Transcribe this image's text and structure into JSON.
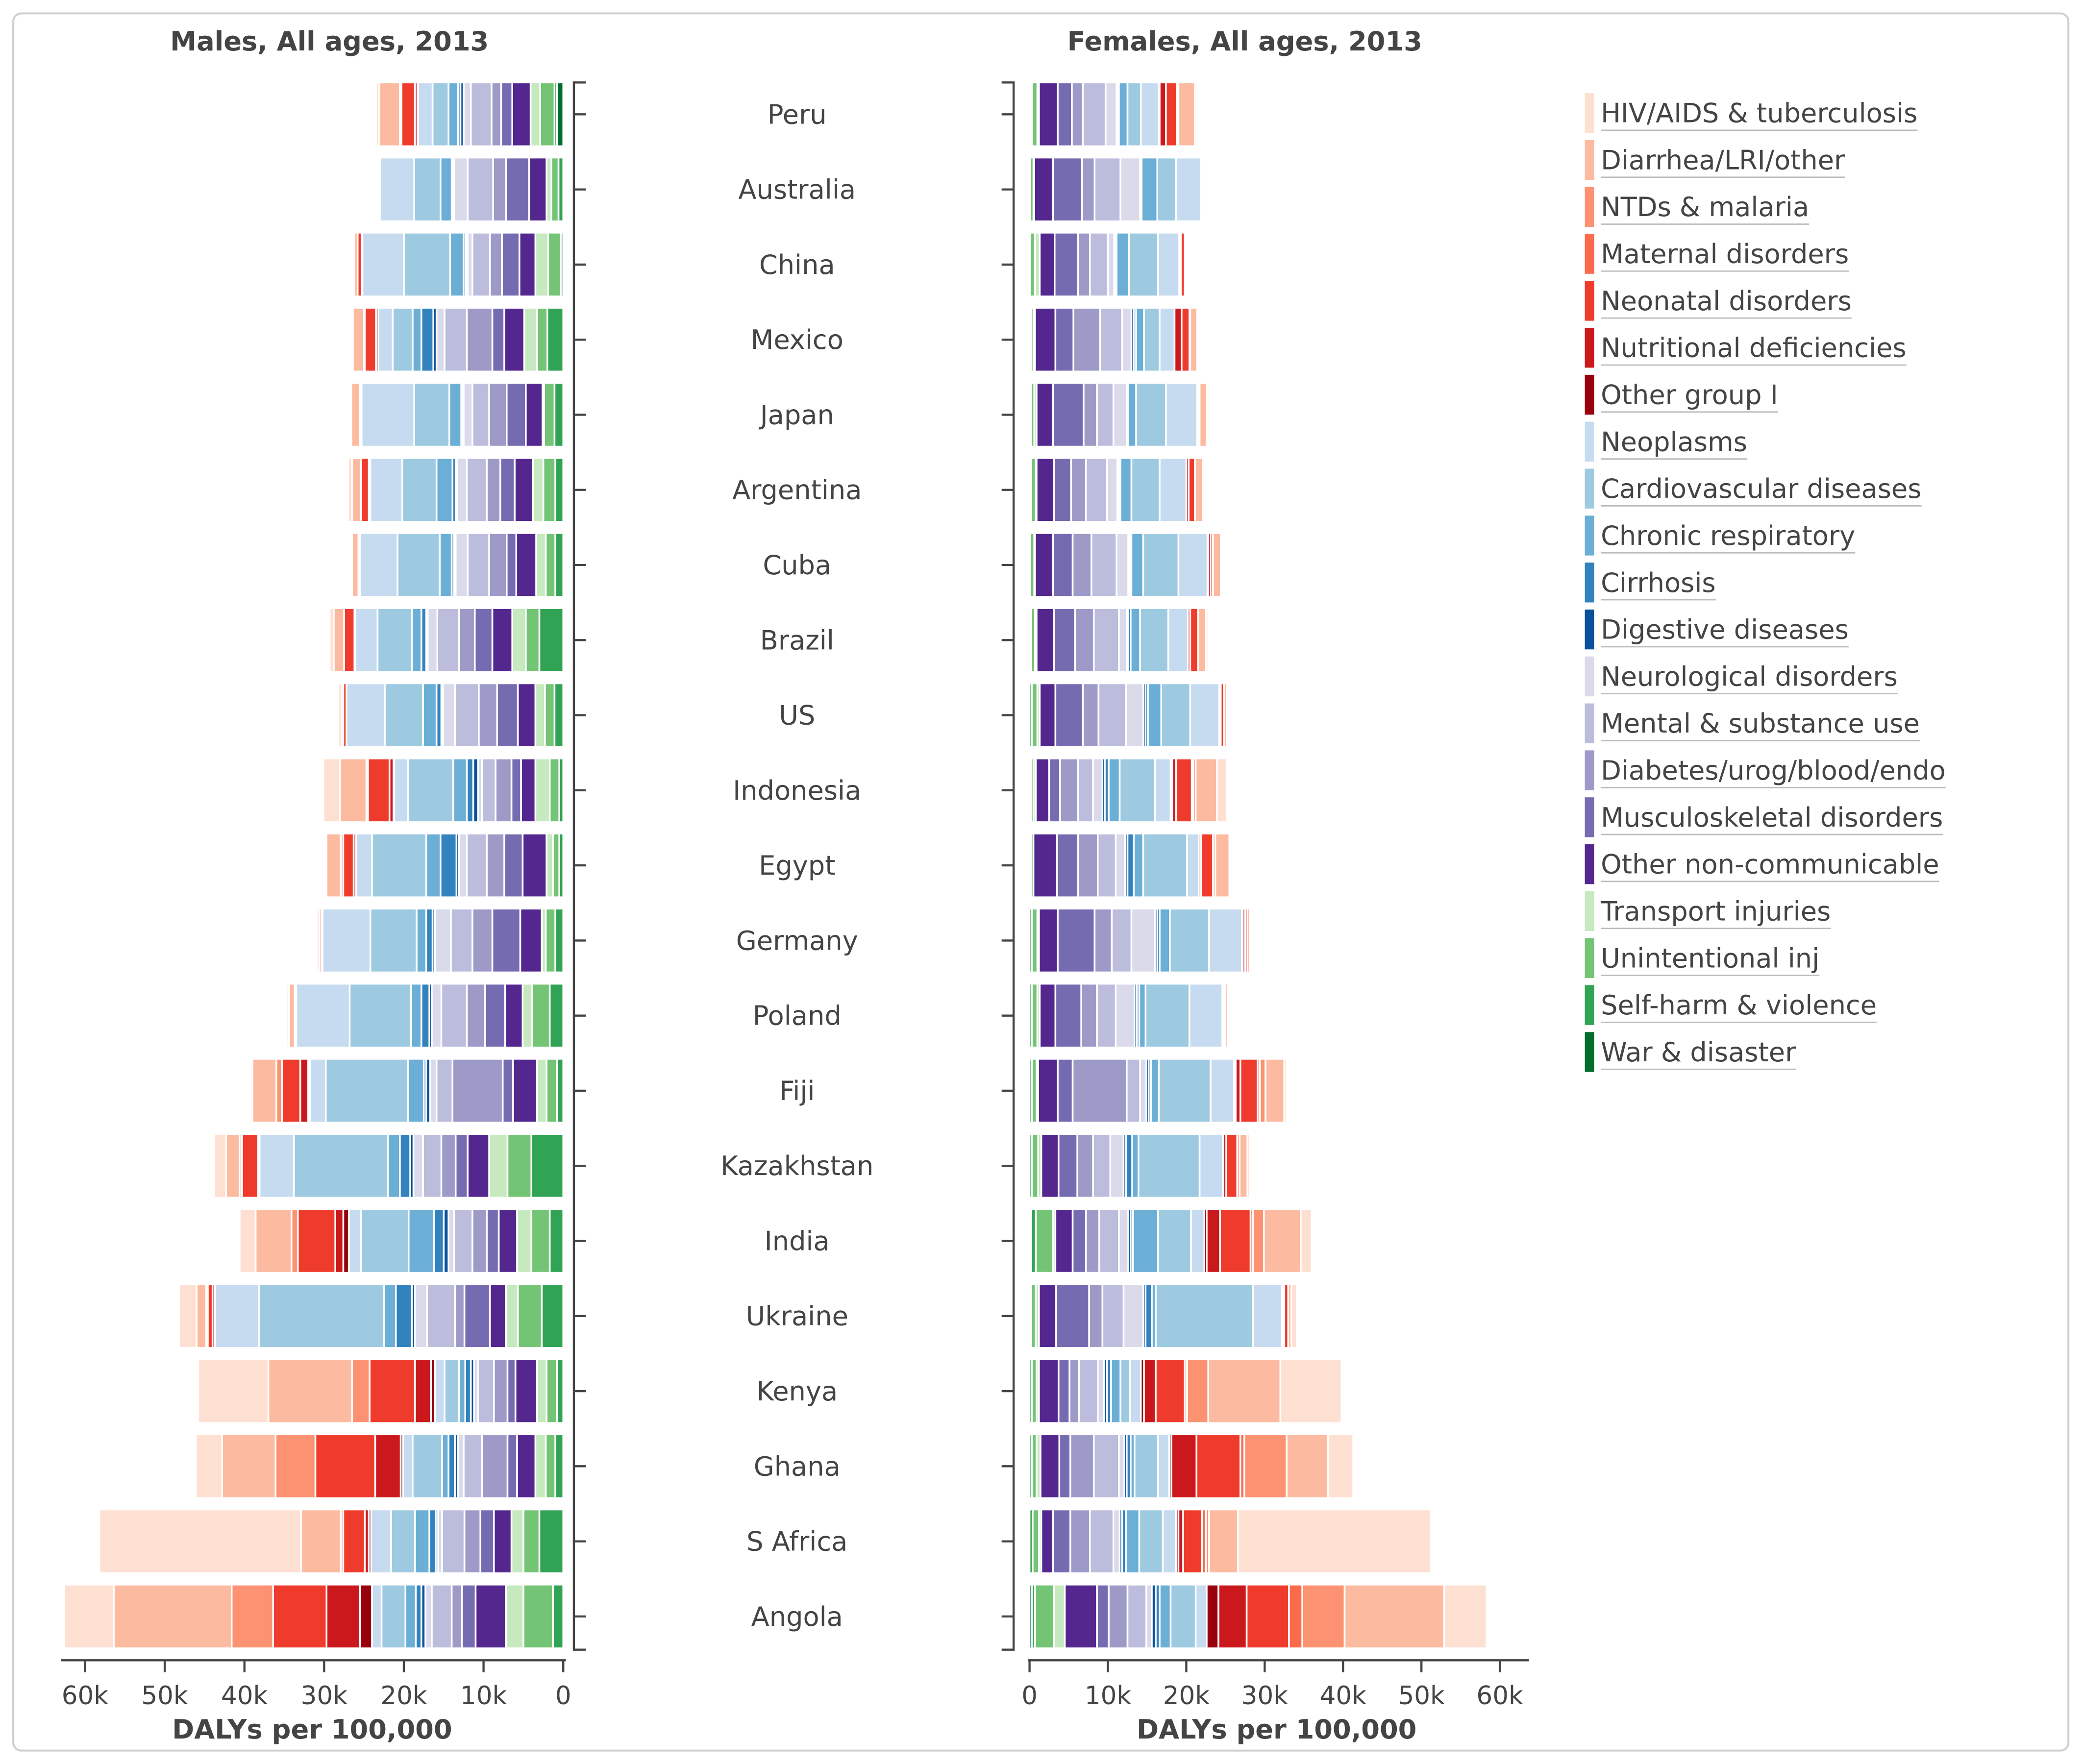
{
  "legend": [
    {
      "label": "HIV/AIDS & tuberculosis",
      "color": "#fee0d2"
    },
    {
      "label": "Diarrhea/LRI/other",
      "color": "#fcbba1"
    },
    {
      "label": "NTDs & malaria",
      "color": "#fc9272"
    },
    {
      "label": "Maternal disorders",
      "color": "#fb6a4a"
    },
    {
      "label": "Neonatal disorders",
      "color": "#ef3b2c"
    },
    {
      "label": "Nutritional deficiencies",
      "color": "#cb181d"
    },
    {
      "label": "Other group I",
      "color": "#99000d"
    },
    {
      "label": "Neoplasms",
      "color": "#c6dbef"
    },
    {
      "label": "Cardiovascular diseases",
      "color": "#9ecae1"
    },
    {
      "label": "Chronic respiratory",
      "color": "#6baed6"
    },
    {
      "label": "Cirrhosis",
      "color": "#3182bd"
    },
    {
      "label": "Digestive diseases",
      "color": "#08519c"
    },
    {
      "label": "Neurological disorders",
      "color": "#dadaeb"
    },
    {
      "label": "Mental & substance use",
      "color": "#bcbddc"
    },
    {
      "label": "Diabetes/urog/blood/endo",
      "color": "#9e9ac8"
    },
    {
      "label": "Musculoskeletal disorders",
      "color": "#756bb1"
    },
    {
      "label": "Other non-communicable",
      "color": "#54278f"
    },
    {
      "label": "Transport injuries",
      "color": "#c7e9c0"
    },
    {
      "label": "Unintentional inj",
      "color": "#74c476"
    },
    {
      "label": "Self-harm & violence",
      "color": "#31a354"
    },
    {
      "label": "War & disaster",
      "color": "#006d2c"
    }
  ],
  "categories": [
    "Peru",
    "Australia",
    "China",
    "Mexico",
    "Japan",
    "Argentina",
    "Cuba",
    "Brazil",
    "US",
    "Indonesia",
    "Egypt",
    "Germany",
    "Poland",
    "Fiji",
    "Kazakhstan",
    "India",
    "Ukraine",
    "Kenya",
    "Ghana",
    "S Africa",
    "Angola"
  ],
  "chart_data": [
    {
      "type": "bar",
      "orientation": "horizontal-stacked",
      "title": "Males, All ages, 2013",
      "xlabel": "DALYs per 100,000",
      "xlim": [
        0,
        60000
      ],
      "x_direction": "reversed",
      "xticks": [
        "0",
        "10k",
        "20k",
        "30k",
        "40k",
        "50k",
        "60k"
      ],
      "grid": false,
      "units": "thousand DALYs per 100,000",
      "rows": [
        [
          0.4,
          2.6,
          0.1,
          0.1,
          1.7,
          0.3,
          0.1,
          1.8,
          2.0,
          1.2,
          0.3,
          0.4,
          0.9,
          2.6,
          1.2,
          1.4,
          2.3,
          1.2,
          1.8,
          0.3,
          0.8
        ],
        [
          0.1,
          0.1,
          0,
          0,
          0.1,
          0,
          0,
          4.3,
          3.3,
          1.4,
          0.2,
          0.1,
          1.7,
          3.2,
          1.6,
          2.9,
          2.2,
          0.6,
          0.9,
          0.6,
          0
        ],
        [
          0,
          0.4,
          0,
          0,
          0.5,
          0.1,
          0,
          5.2,
          5.8,
          1.7,
          0.3,
          0.2,
          0.6,
          2.2,
          1.5,
          2.2,
          2.0,
          1.6,
          1.6,
          0.3,
          0
        ],
        [
          0.1,
          1.4,
          0,
          0.1,
          1.4,
          0.3,
          0,
          1.8,
          2.5,
          1.1,
          1.5,
          0.4,
          1.0,
          2.8,
          3.2,
          1.5,
          2.5,
          1.6,
          1.3,
          2.0,
          0
        ],
        [
          0.2,
          1.1,
          0,
          0,
          0.1,
          0.1,
          0,
          6.6,
          4.4,
          1.5,
          0.2,
          0.1,
          1.1,
          2.1,
          2.2,
          2.4,
          2.1,
          0.2,
          1.3,
          1.1,
          0
        ],
        [
          0.5,
          1.1,
          0,
          0,
          1.0,
          0.2,
          0,
          4.0,
          4.3,
          2.0,
          0.4,
          0.2,
          1.2,
          2.5,
          1.7,
          1.8,
          2.3,
          1.3,
          1.5,
          1.0,
          0
        ],
        [
          0.2,
          0.8,
          0,
          0,
          0.2,
          0,
          0,
          4.7,
          5.3,
          1.5,
          0.3,
          0.2,
          1.5,
          2.7,
          2.2,
          1.2,
          2.5,
          1.2,
          1.2,
          1.0,
          0
        ],
        [
          0.5,
          1.3,
          0,
          0,
          1.3,
          0.1,
          0,
          2.8,
          4.3,
          1.2,
          0.6,
          0.2,
          1.2,
          2.7,
          2.0,
          2.2,
          2.5,
          1.7,
          1.7,
          3.0,
          0
        ],
        [
          0.4,
          0.2,
          0,
          0,
          0.4,
          0,
          0,
          4.8,
          4.8,
          1.7,
          0.6,
          0.2,
          1.5,
          3.0,
          2.3,
          2.6,
          2.2,
          1.2,
          1.2,
          1.1,
          0
        ],
        [
          2.1,
          3.3,
          0.2,
          0,
          2.7,
          0.5,
          0.1,
          1.7,
          5.7,
          1.7,
          0.8,
          0.6,
          0.5,
          1.7,
          2.0,
          1.2,
          1.8,
          1.8,
          1.2,
          0.5,
          0
        ],
        [
          0.1,
          1.8,
          0.3,
          0,
          1.3,
          0.3,
          0,
          2.0,
          6.8,
          1.8,
          2.0,
          0.3,
          1.0,
          2.5,
          2.2,
          2.3,
          3.0,
          0.8,
          0.8,
          0.5,
          0
        ],
        [
          0.3,
          0.3,
          0,
          0,
          0.1,
          0,
          0,
          6.0,
          5.8,
          1.2,
          0.8,
          0.3,
          2.0,
          2.7,
          2.5,
          3.5,
          2.7,
          0.5,
          1.2,
          1.0,
          0
        ],
        [
          0.3,
          0.7,
          0,
          0,
          0.2,
          0,
          0,
          6.7,
          7.7,
          1.3,
          1.0,
          0.3,
          1.2,
          3.2,
          2.3,
          2.5,
          2.2,
          1.2,
          2.2,
          1.7,
          0
        ],
        [
          0.2,
          3.0,
          0.7,
          0,
          2.3,
          1.0,
          0.2,
          2.0,
          10.3,
          2.0,
          0.3,
          0.5,
          0.8,
          2.0,
          6.3,
          1.3,
          3.0,
          1.2,
          1.3,
          0.8,
          0
        ],
        [
          1.5,
          1.7,
          0.3,
          0,
          2.0,
          0.2,
          0,
          4.3,
          11.8,
          1.5,
          1.3,
          0.4,
          1.2,
          2.3,
          1.8,
          1.5,
          2.7,
          2.3,
          3.0,
          4.0,
          0
        ],
        [
          2.0,
          4.5,
          0.8,
          0,
          4.7,
          1.0,
          0.7,
          1.5,
          6.0,
          3.2,
          1.2,
          0.6,
          0.7,
          2.3,
          1.8,
          1.5,
          2.3,
          1.8,
          2.3,
          1.7,
          0
        ],
        [
          2.2,
          1.2,
          0.2,
          0,
          0.6,
          0.3,
          0,
          5.5,
          15.7,
          1.5,
          2.0,
          0.4,
          1.5,
          3.5,
          1.2,
          3.2,
          2.0,
          1.5,
          3.0,
          2.7,
          0
        ],
        [
          8.8,
          10.5,
          2.2,
          0,
          5.7,
          2.0,
          0.5,
          1.2,
          1.8,
          0.8,
          0.7,
          0.4,
          0.5,
          2.0,
          1.7,
          1.0,
          2.7,
          1.2,
          1.3,
          0.8,
          0
        ],
        [
          3.3,
          6.7,
          5.0,
          0,
          7.5,
          3.2,
          0.3,
          1.2,
          3.7,
          0.8,
          0.8,
          0.4,
          0.7,
          2.3,
          3.2,
          1.2,
          2.3,
          1.3,
          1.2,
          1.0,
          0
        ],
        [
          25.3,
          5.0,
          0.3,
          0,
          2.7,
          0.5,
          0.3,
          2.5,
          3.0,
          1.8,
          0.8,
          0.3,
          0.5,
          2.8,
          2.0,
          1.7,
          2.2,
          1.5,
          2.0,
          3.0,
          0
        ],
        [
          6.2,
          14.8,
          5.2,
          0,
          6.7,
          4.2,
          1.5,
          1.2,
          3.0,
          1.3,
          0.7,
          0.5,
          0.8,
          2.5,
          1.3,
          1.7,
          3.8,
          2.2,
          3.7,
          1.3,
          0
        ]
      ]
    },
    {
      "type": "bar",
      "orientation": "horizontal-stacked",
      "title": "Females, All ages, 2013",
      "xlabel": "DALYs per 100,000",
      "xlim": [
        0,
        60000
      ],
      "xticks": [
        "0",
        "10k",
        "20k",
        "30k",
        "40k",
        "50k",
        "60k"
      ],
      "grid": false,
      "units": "thousand DALYs per 100,000",
      "rows": [
        [
          0.3,
          2.1,
          0.1,
          0.1,
          1.4,
          0.8,
          0.1,
          2.3,
          1.7,
          1.1,
          0.1,
          0.2,
          1.4,
          2.9,
          1.4,
          1.8,
          2.4,
          0.2,
          0.7,
          0.1,
          0.2
        ],
        [
          0.1,
          0.1,
          0,
          0,
          0.1,
          0,
          0,
          3.2,
          2.4,
          2.0,
          0.1,
          0.1,
          2.5,
          3.3,
          1.6,
          3.7,
          2.4,
          0.1,
          0.4,
          0.1,
          0
        ],
        [
          0,
          0.2,
          0,
          0,
          0.5,
          0.2,
          0,
          2.7,
          3.7,
          1.6,
          0.1,
          0.2,
          0.8,
          2.3,
          1.5,
          3.0,
          1.9,
          0.6,
          0.6,
          0.1,
          0
        ],
        [
          0.1,
          0.9,
          0,
          0.1,
          1.0,
          0.9,
          0,
          1.9,
          2.0,
          1.0,
          0.3,
          0.3,
          1.2,
          2.8,
          3.4,
          2.3,
          2.6,
          0.2,
          0.3,
          0.2,
          0
        ],
        [
          0.1,
          0.9,
          0,
          0,
          0.1,
          0.2,
          0,
          4.0,
          3.8,
          1.0,
          0.1,
          0.1,
          1.7,
          2.1,
          1.7,
          3.9,
          2.1,
          0.3,
          0.4,
          0.2,
          0
        ],
        [
          0.3,
          1.0,
          0,
          0,
          0.8,
          0.3,
          0,
          3.4,
          3.6,
          1.4,
          0.2,
          0.2,
          1.3,
          2.7,
          1.9,
          2.2,
          2.2,
          0.1,
          0.6,
          0.2,
          0
        ],
        [
          0.2,
          1.0,
          0,
          0,
          0.3,
          0.3,
          0.1,
          3.7,
          4.5,
          1.5,
          0.2,
          0.2,
          1.5,
          3.2,
          2.4,
          2.5,
          2.3,
          0.1,
          0.5,
          0.1,
          0
        ],
        [
          0.3,
          1.0,
          0,
          0,
          1.0,
          0.3,
          0,
          2.5,
          3.6,
          1.2,
          0.3,
          0.2,
          1.0,
          3.2,
          2.4,
          2.7,
          2.2,
          0.2,
          0.5,
          0.2,
          0
        ],
        [
          0.2,
          0.4,
          0,
          0,
          0.4,
          0.2,
          0,
          3.7,
          3.7,
          1.7,
          0.3,
          0.3,
          2.2,
          3.5,
          2.0,
          3.5,
          2.0,
          0.3,
          0.7,
          0.3,
          0
        ],
        [
          1.3,
          2.7,
          0.3,
          0.2,
          2.0,
          0.5,
          0.2,
          2.0,
          4.5,
          1.4,
          0.5,
          0.3,
          1.2,
          1.9,
          2.3,
          1.4,
          1.7,
          0.3,
          0.3,
          0.2,
          0
        ],
        [
          0.2,
          1.8,
          0.3,
          0,
          1.5,
          0.3,
          0,
          1.5,
          5.6,
          1.2,
          0.8,
          0.3,
          1.2,
          2.3,
          2.5,
          2.7,
          3.0,
          0,
          0.3,
          0.2,
          0
        ],
        [
          0.2,
          0.3,
          0,
          0,
          0.3,
          0.3,
          0.1,
          4.2,
          5.0,
          1.3,
          0.3,
          0.3,
          3.0,
          2.5,
          2.2,
          4.7,
          2.4,
          0.2,
          0.7,
          0.3,
          0
        ],
        [
          0.2,
          0.3,
          0,
          0,
          0.2,
          0.2,
          0,
          4.2,
          5.6,
          0.8,
          0.3,
          0.3,
          2.4,
          2.4,
          2.0,
          3.3,
          2.0,
          0.3,
          0.7,
          0.3,
          0
        ],
        [
          0.3,
          2.4,
          0.7,
          0.3,
          2.2,
          0.6,
          0.2,
          3.0,
          6.6,
          1.0,
          0.3,
          0.3,
          0.8,
          1.7,
          6.9,
          1.9,
          2.5,
          0.2,
          0.6,
          0.3,
          0
        ],
        [
          0.3,
          1.0,
          0.3,
          0,
          1.4,
          0.4,
          0,
          3.0,
          7.8,
          0.8,
          0.8,
          0.3,
          1.7,
          2.2,
          2.0,
          2.4,
          2.2,
          0.4,
          0.8,
          0.3,
          0
        ],
        [
          1.4,
          4.7,
          1.4,
          0.3,
          3.9,
          1.7,
          0.3,
          1.7,
          4.2,
          3.2,
          0.3,
          0.3,
          1.2,
          2.5,
          1.7,
          1.7,
          2.2,
          0.3,
          2.2,
          0.6,
          0.2
        ],
        [
          0.7,
          0.4,
          0,
          0,
          0.5,
          0.2,
          0.1,
          3.7,
          12.4,
          0.5,
          0.8,
          0.3,
          2.5,
          2.7,
          1.7,
          4.2,
          2.2,
          0.4,
          0.6,
          0.2,
          0
        ],
        [
          7.8,
          9.2,
          2.7,
          0.3,
          3.7,
          1.5,
          0.4,
          1.4,
          1.2,
          1.2,
          0.5,
          0.4,
          0.8,
          2.4,
          1.2,
          1.4,
          2.5,
          0.3,
          0.6,
          0.3,
          0
        ],
        [
          3.2,
          5.3,
          5.4,
          0.5,
          5.6,
          3.2,
          0.3,
          1.4,
          3.0,
          0.5,
          0.5,
          0.3,
          0.7,
          3.2,
          3.0,
          1.4,
          2.4,
          0.5,
          0.6,
          0.3,
          0
        ],
        [
          24.6,
          3.7,
          0.4,
          0.5,
          2.4,
          0.6,
          0.3,
          1.7,
          3.0,
          1.7,
          0.5,
          0.3,
          0.8,
          3.0,
          2.5,
          2.2,
          1.5,
          0.3,
          0.8,
          0.4,
          0
        ],
        [
          5.4,
          12.7,
          5.4,
          1.7,
          5.4,
          3.6,
          1.5,
          1.4,
          3.2,
          1.4,
          0.5,
          0.5,
          0.7,
          2.4,
          2.4,
          1.5,
          4.1,
          1.4,
          2.4,
          0.4,
          0.3
        ]
      ]
    }
  ]
}
